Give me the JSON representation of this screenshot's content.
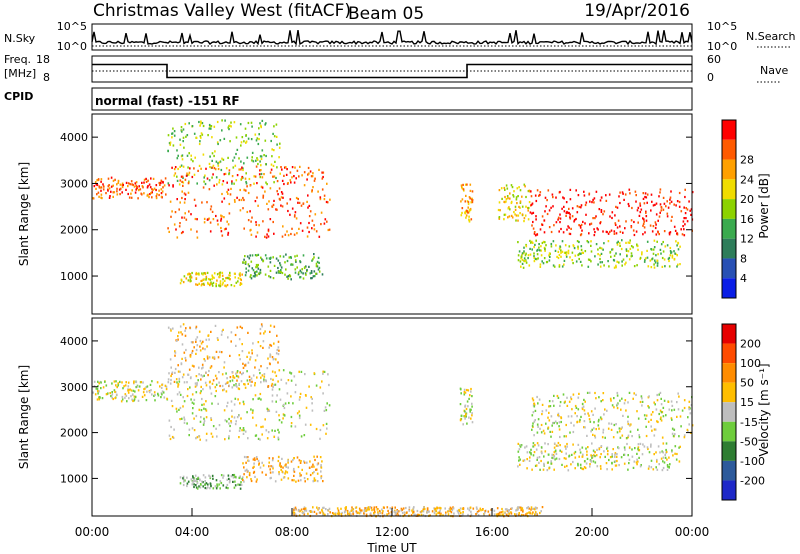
{
  "header": {
    "title": "Christmas Valley West (fitACF)",
    "beam": "Beam 05",
    "date": "19/Apr/2016"
  },
  "strips": {
    "nsky_label": "N.Sky",
    "nsky_ticks": [
      "10^5",
      "10^0"
    ],
    "nsearch_label": "N.Search",
    "nsearch_ticks": [
      "10^5",
      "10^0"
    ],
    "freq_label_1": "Freq.",
    "freq_label_2": "[MHz]",
    "freq_ticks": [
      "18",
      "8"
    ],
    "nave_label": "Nave",
    "nave_ticks": [
      "60",
      "0"
    ],
    "cpid_label": "CPID",
    "cpid_text": "normal (fast) -151 RF",
    "freq_step_times_h": [
      0,
      3.0,
      15.0,
      24
    ],
    "freq_step_values_mhz": [
      15.5,
      10.5,
      15.5,
      15.5
    ]
  },
  "chart_data": [
    {
      "type": "heatmap",
      "panel": "power",
      "ylabel": "Slant Range [km]",
      "xlabel": "Time UT",
      "xlim_hours": [
        0,
        24
      ],
      "x_tick_labels": [
        "00:00",
        "04:00",
        "08:00",
        "12:00",
        "16:00",
        "20:00",
        "00:00"
      ],
      "ylim_km": [
        180,
        4500
      ],
      "y_ticks": [
        1000,
        2000,
        3000,
        4000
      ],
      "colorbar": {
        "label": "Power [dB]",
        "tick_labels": [
          "4",
          "8",
          "12",
          "16",
          "20",
          "24",
          "28"
        ],
        "colors": [
          "#0a1ee6",
          "#2850b4",
          "#2e7d5a",
          "#3aaa4e",
          "#8cd200",
          "#f0dc00",
          "#ffa000",
          "#ff5a00",
          "#ff0000"
        ]
      },
      "regions": [
        {
          "t": [
            0.0,
            3.0
          ],
          "r": [
            2700,
            3150
          ],
          "level": 7
        },
        {
          "t": [
            3.0,
            7.5
          ],
          "r": [
            3000,
            4400
          ],
          "level": 4
        },
        {
          "t": [
            3.0,
            9.5
          ],
          "r": [
            1850,
            3400
          ],
          "level": 7
        },
        {
          "t": [
            3.5,
            6.0
          ],
          "r": [
            800,
            1100
          ],
          "level": 5
        },
        {
          "t": [
            6.0,
            9.2
          ],
          "r": [
            950,
            1500
          ],
          "level": 3
        },
        {
          "t": [
            14.7,
            15.2
          ],
          "r": [
            2200,
            3000
          ],
          "level": 6
        },
        {
          "t": [
            16.2,
            17.5
          ],
          "r": [
            2200,
            3000
          ],
          "level": 5
        },
        {
          "t": [
            17.5,
            24.0
          ],
          "r": [
            1900,
            2900
          ],
          "level": 8
        },
        {
          "t": [
            17.0,
            23.5
          ],
          "r": [
            1200,
            1800
          ],
          "level": 4
        }
      ]
    },
    {
      "type": "heatmap",
      "panel": "velocity",
      "ylabel": "Slant Range [km]",
      "xlabel": "Time UT",
      "xlim_hours": [
        0,
        24
      ],
      "x_tick_labels": [
        "00:00",
        "04:00",
        "08:00",
        "12:00",
        "16:00",
        "20:00",
        "00:00"
      ],
      "ylim_km": [
        180,
        4500
      ],
      "y_ticks": [
        1000,
        2000,
        3000,
        4000
      ],
      "colorbar": {
        "label": "Velocity [m s⁻¹]",
        "tick_labels": [
          "200",
          "100",
          "50",
          "15",
          "-15",
          "-50",
          "-100",
          "-200"
        ],
        "colors": [
          "#1e28c8",
          "#2d5a9b",
          "#2e7d32",
          "#6ecd3c",
          "#bebebe",
          "#ffbe00",
          "#ff8c00",
          "#ff4b00",
          "#e60000"
        ]
      },
      "regions": [
        {
          "t": [
            0.0,
            3.0
          ],
          "r": [
            2700,
            3150
          ],
          "level": 4
        },
        {
          "t": [
            3.0,
            7.5
          ],
          "r": [
            3000,
            4400
          ],
          "level": 5
        },
        {
          "t": [
            3.0,
            9.5
          ],
          "r": [
            1850,
            3400
          ],
          "level": 4
        },
        {
          "t": [
            3.5,
            6.0
          ],
          "r": [
            800,
            1100
          ],
          "level": 3
        },
        {
          "t": [
            6.0,
            9.2
          ],
          "r": [
            950,
            1500
          ],
          "level": 5
        },
        {
          "t": [
            14.7,
            15.2
          ],
          "r": [
            2200,
            3000
          ],
          "level": 4
        },
        {
          "t": [
            17.5,
            24.0
          ],
          "r": [
            1900,
            2900
          ],
          "level": 4
        },
        {
          "t": [
            17.0,
            23.5
          ],
          "r": [
            1200,
            1800
          ],
          "level": 4
        },
        {
          "t": [
            8.0,
            18.0
          ],
          "r": [
            200,
            400
          ],
          "level": 5
        }
      ]
    }
  ]
}
